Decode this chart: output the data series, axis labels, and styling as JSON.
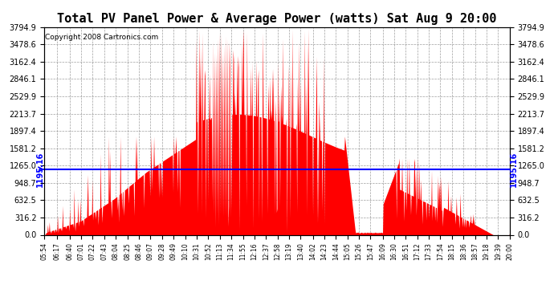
{
  "title": "Total PV Panel Power & Average Power (watts) Sat Aug 9 20:00",
  "copyright": "Copyright 2008 Cartronics.com",
  "avg_power": 1195.16,
  "ymax": 3794.9,
  "yticks": [
    0.0,
    316.2,
    632.5,
    948.7,
    1265.0,
    1581.2,
    1897.4,
    2213.7,
    2529.9,
    2846.1,
    3162.4,
    3478.6,
    3794.9
  ],
  "fill_color": "#FF0000",
  "line_color": "#0000FF",
  "grid_color": "#888888",
  "background_color": "#FFFFFF",
  "title_fontsize": 11,
  "copyright_fontsize": 6.5,
  "avg_label_fontsize": 7,
  "x_tick_labels": [
    "05:54",
    "06:17",
    "06:40",
    "07:01",
    "07:22",
    "07:43",
    "08:04",
    "08:25",
    "08:46",
    "09:07",
    "09:28",
    "09:49",
    "10:10",
    "10:31",
    "10:52",
    "11:13",
    "11:34",
    "11:55",
    "12:16",
    "12:37",
    "12:58",
    "13:19",
    "13:40",
    "14:02",
    "14:23",
    "14:44",
    "15:05",
    "15:26",
    "15:47",
    "16:09",
    "16:30",
    "16:51",
    "17:12",
    "17:33",
    "17:54",
    "18:15",
    "18:36",
    "18:57",
    "19:18",
    "19:39",
    "20:00"
  ]
}
